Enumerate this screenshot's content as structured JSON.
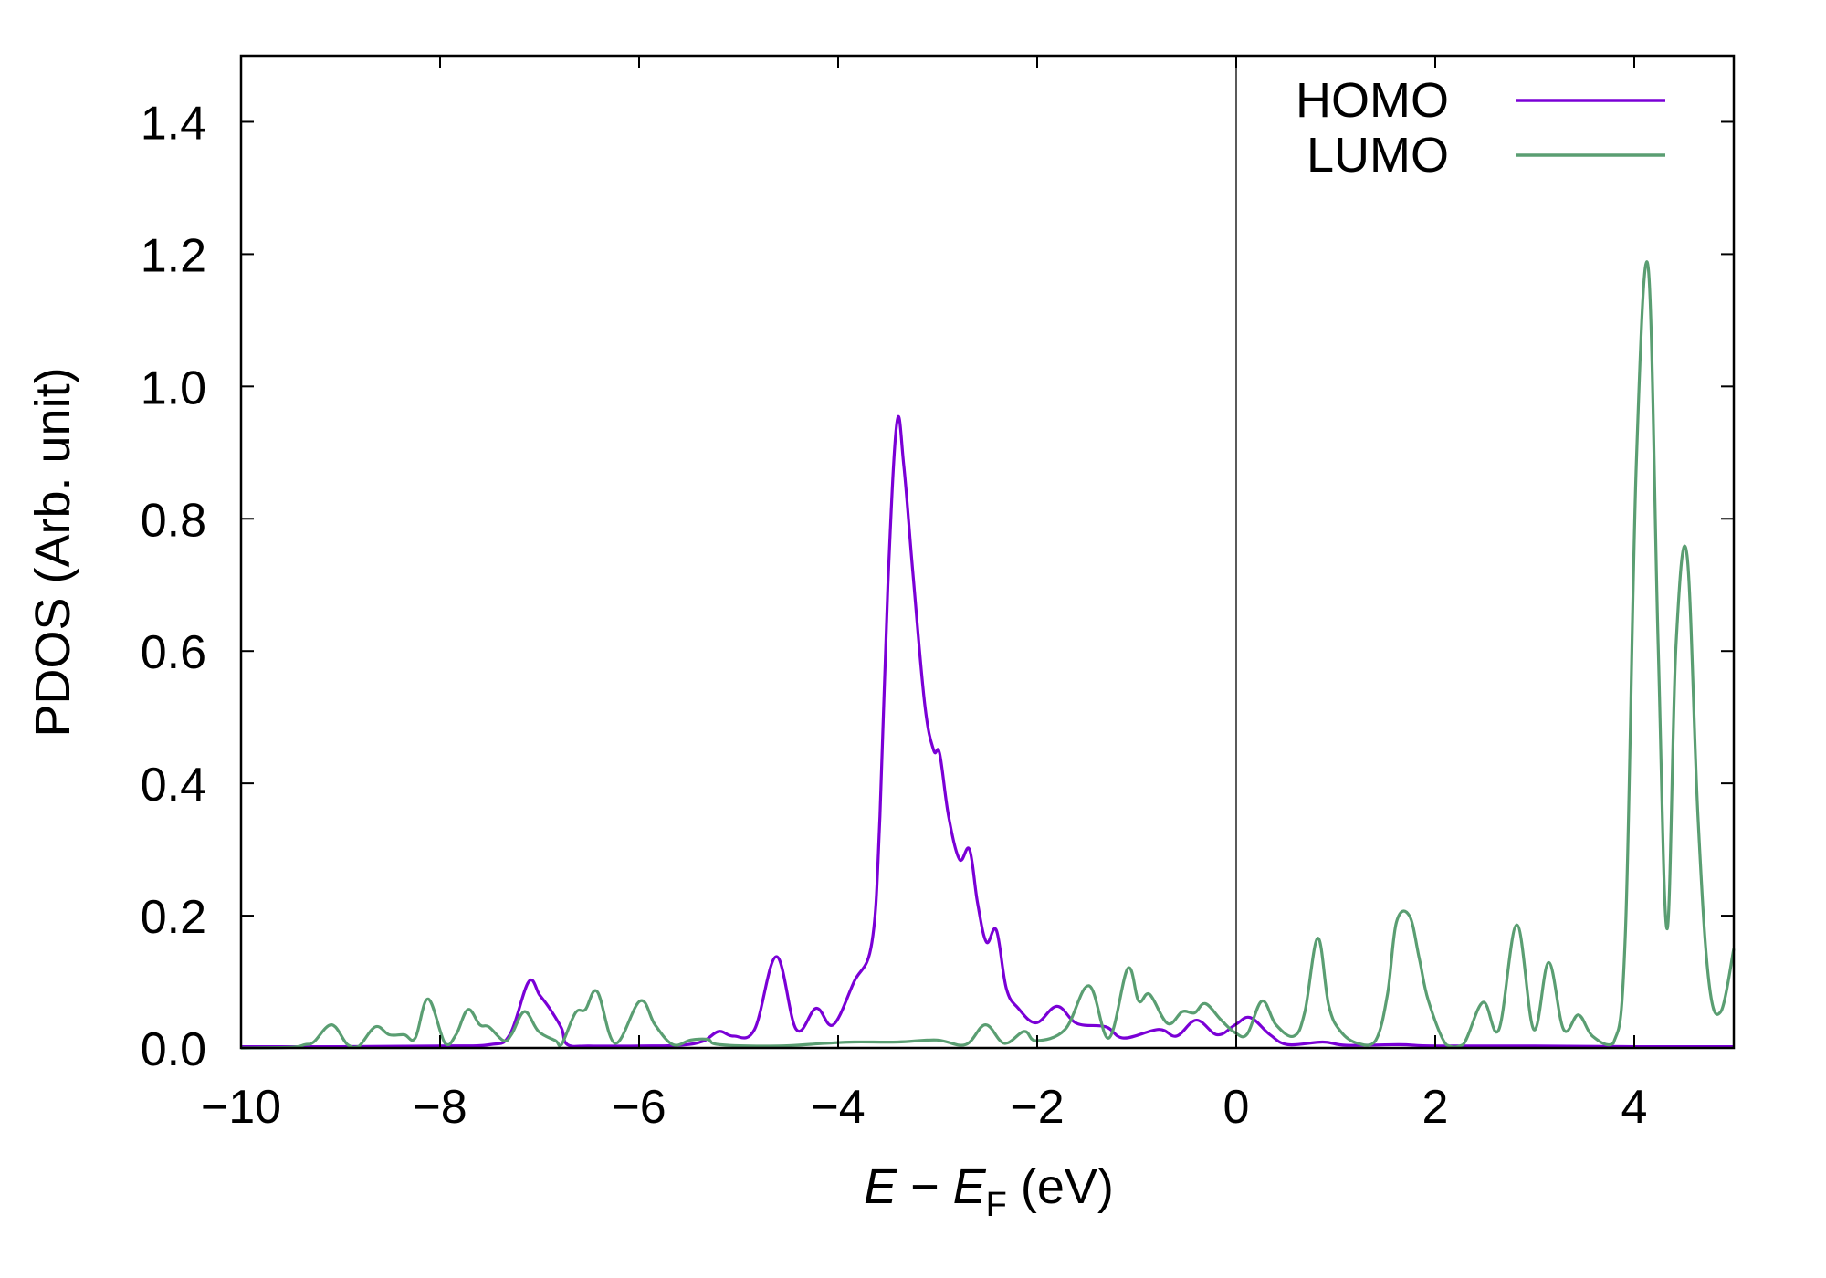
{
  "chart_data": {
    "type": "line",
    "xlabel": {
      "italic_main": "E",
      "minus": " − ",
      "italic_sub_base": "E",
      "sub": "F",
      "unit": " (eV)"
    },
    "ylabel": "PDOS (Arb. unit)",
    "xlim": [
      -10,
      5
    ],
    "ylim": [
      0,
      1.5
    ],
    "xticks": [
      -10,
      -8,
      -6,
      -4,
      -2,
      0,
      2,
      4
    ],
    "xtick_labels": [
      "−10",
      "−8",
      "−6",
      "−4",
      "−2",
      "0",
      "2",
      "4"
    ],
    "yticks": [
      0,
      0.2,
      0.4,
      0.6,
      0.8,
      1.0,
      1.2,
      1.4
    ],
    "ytick_labels": [
      "0.0",
      "0.2",
      "0.4",
      "0.6",
      "0.8",
      "1.0",
      "1.2",
      "1.4"
    ],
    "vline_x": 0,
    "grid": false,
    "legend_position": "top-right",
    "series": [
      {
        "name": "HOMO",
        "color": "#7a00d6",
        "x": [
          -10,
          -9,
          -8,
          -7.5,
          -7.3,
          -7.11,
          -7.0,
          -6.9,
          -6.78,
          -6.72,
          -6.5,
          -6,
          -5.6,
          -5.36,
          -5.2,
          -5.05,
          -4.84,
          -4.62,
          -4.42,
          -4.22,
          -4.05,
          -3.84,
          -3.66,
          -3.58,
          -3.5,
          -3.41,
          -3.34,
          -3.25,
          -3.13,
          -3.04,
          -2.98,
          -2.89,
          -2.78,
          -2.68,
          -2.6,
          -2.51,
          -2.41,
          -2.31,
          -2.19,
          -2.01,
          -1.8,
          -1.6,
          -1.31,
          -1.13,
          -0.78,
          -0.6,
          -0.4,
          -0.19,
          -0.01,
          0.14,
          0.34,
          0.52,
          0.87,
          1.11,
          1.64,
          2,
          3,
          4,
          5
        ],
        "y": [
          0.002,
          0.002,
          0.003,
          0.005,
          0.02,
          0.1,
          0.08,
          0.06,
          0.03,
          0.005,
          0.003,
          0.003,
          0.004,
          0.01,
          0.025,
          0.018,
          0.028,
          0.138,
          0.028,
          0.06,
          0.035,
          0.1,
          0.16,
          0.35,
          0.7,
          0.945,
          0.88,
          0.72,
          0.52,
          0.45,
          0.445,
          0.35,
          0.285,
          0.3,
          0.22,
          0.16,
          0.178,
          0.09,
          0.06,
          0.038,
          0.063,
          0.037,
          0.032,
          0.015,
          0.028,
          0.018,
          0.042,
          0.02,
          0.035,
          0.046,
          0.02,
          0.005,
          0.009,
          0.004,
          0.005,
          0.003,
          0.003,
          0.002,
          0.002
        ]
      },
      {
        "name": "LUMO",
        "color": "#5a9e72",
        "x": [
          -10,
          -9.5,
          -9.36,
          -9.27,
          -9.09,
          -8.93,
          -8.82,
          -8.65,
          -8.51,
          -8.36,
          -8.25,
          -8.12,
          -7.95,
          -7.84,
          -7.72,
          -7.6,
          -7.51,
          -7.36,
          -7.28,
          -7.15,
          -7.01,
          -6.84,
          -6.78,
          -6.64,
          -6.54,
          -6.42,
          -6.24,
          -5.99,
          -5.84,
          -5.66,
          -5.48,
          -5.31,
          -5.19,
          -4.6,
          -4.13,
          -3.84,
          -3.4,
          -3.01,
          -2.72,
          -2.52,
          -2.33,
          -2.13,
          -2.01,
          -1.72,
          -1.48,
          -1.28,
          -1.09,
          -0.98,
          -0.87,
          -0.69,
          -0.54,
          -0.42,
          -0.31,
          -0.15,
          -0.01,
          0.11,
          0.26,
          0.4,
          0.58,
          0.69,
          0.82,
          0.93,
          1.05,
          1.22,
          1.4,
          1.52,
          1.61,
          1.74,
          1.84,
          1.93,
          2.11,
          2.28,
          2.48,
          2.64,
          2.82,
          2.99,
          3.14,
          3.29,
          3.44,
          3.58,
          3.79,
          3.91,
          4.02,
          4.14,
          4.24,
          4.33,
          4.42,
          4.53,
          4.64,
          4.75,
          4.87,
          5.0
        ],
        "y": [
          0,
          0.001,
          0.005,
          0.009,
          0.035,
          0.005,
          0.002,
          0.032,
          0.02,
          0.02,
          0.015,
          0.074,
          0.007,
          0.02,
          0.058,
          0.035,
          0.032,
          0.011,
          0.021,
          0.055,
          0.025,
          0.011,
          0.005,
          0.053,
          0.058,
          0.085,
          0.007,
          0.071,
          0.035,
          0.005,
          0.012,
          0.013,
          0.005,
          0.003,
          0.007,
          0.009,
          0.009,
          0.012,
          0.005,
          0.035,
          0.007,
          0.025,
          0.011,
          0.028,
          0.094,
          0.015,
          0.12,
          0.071,
          0.081,
          0.037,
          0.055,
          0.053,
          0.067,
          0.042,
          0.023,
          0.021,
          0.071,
          0.035,
          0.018,
          0.055,
          0.166,
          0.064,
          0.025,
          0.007,
          0.011,
          0.081,
          0.19,
          0.2,
          0.135,
          0.072,
          0.005,
          0.005,
          0.069,
          0.028,
          0.186,
          0.028,
          0.129,
          0.028,
          0.05,
          0.018,
          0.007,
          0.17,
          0.88,
          1.18,
          0.61,
          0.18,
          0.61,
          0.745,
          0.35,
          0.1,
          0.055,
          0.15
        ]
      }
    ]
  }
}
